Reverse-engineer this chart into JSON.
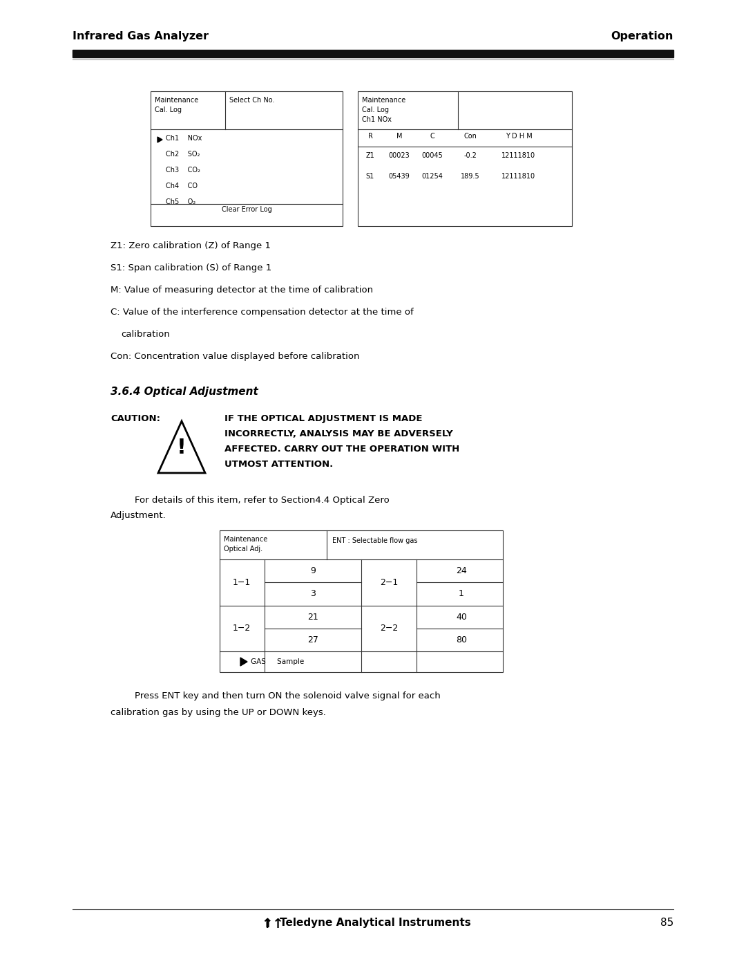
{
  "page_width": 10.8,
  "page_height": 13.97,
  "bg_color": "#ffffff",
  "header_left": "Infrared Gas Analyzer",
  "header_right": "Operation",
  "table1_channels": [
    "Ch1    NOx",
    "Ch2    SO₂",
    "Ch3    CO₂",
    "Ch4    CO",
    "Ch5    O₂"
  ],
  "table1_footer": "Clear Error Log",
  "table2_col_headers": [
    "R",
    "M",
    "C",
    "Con",
    "Y D H M"
  ],
  "table2_row1": [
    "Z1",
    "00023",
    "00045",
    "-0.2",
    "12111810"
  ],
  "table2_row2": [
    "S1",
    "05439",
    "01254",
    "189.5",
    "12111810"
  ],
  "cal_notes": [
    "Z1: Zero calibration (Z) of Range 1",
    "S1: Span calibration (S) of Range 1",
    "M: Value of measuring detector at the time of calibration",
    "C: Value of the interference compensation detector at the time of",
    "calibration",
    "Con: Concentration value displayed before calibration"
  ],
  "section_title": "3.6.4 Optical Adjustment",
  "caution_text_lines": [
    "IF THE OPTICAL ADJUSTMENT IS MADE",
    "INCORRECTLY, ANALYSIS MAY BE ADVERSELY",
    "AFFECTED. CARRY OUT THE OPERATION WITH",
    "UTMOST ATTENTION."
  ],
  "footer_text": "Teledyne Analytical Instruments",
  "footer_page": "85",
  "text_color": "#000000"
}
